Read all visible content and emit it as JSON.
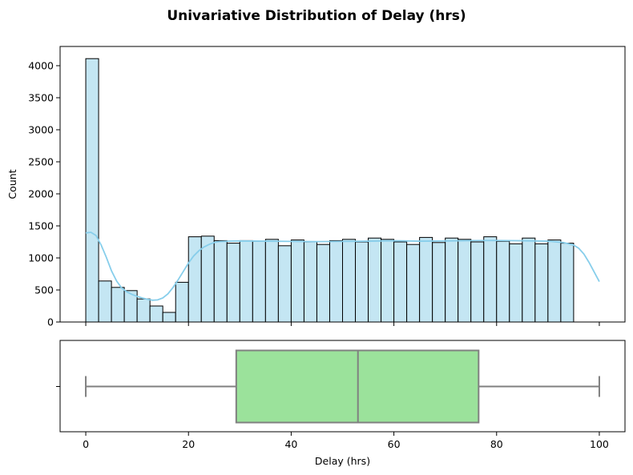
{
  "chart_data": [
    {
      "type": "histogram",
      "title": "Univariative Distribution of Delay (hrs)",
      "xlabel": "",
      "ylabel": "Count",
      "xlim": [
        -5,
        105
      ],
      "ylim": [
        0,
        4300
      ],
      "yticks": [
        0,
        500,
        1000,
        1500,
        2000,
        2500,
        3000,
        3500,
        4000
      ],
      "xticks": [
        0,
        20,
        40,
        60,
        80,
        100
      ],
      "bin_width": 2.5,
      "bin_start": 0,
      "bar_fill": "#c4e6f3",
      "bar_edge": "#000000",
      "kde_color": "#87ceeb",
      "values": [
        4110,
        640,
        540,
        490,
        360,
        250,
        150,
        620,
        1330,
        1340,
        1270,
        1230,
        1270,
        1260,
        1290,
        1190,
        1280,
        1250,
        1210,
        1270,
        1290,
        1250,
        1310,
        1290,
        1250,
        1210,
        1320,
        1240,
        1310,
        1290,
        1250,
        1330,
        1260,
        1220,
        1310,
        1220,
        1280,
        1230
      ],
      "kde": {
        "x": [
          0,
          1,
          2,
          3,
          4,
          5,
          6,
          7,
          8,
          9,
          10,
          11,
          12,
          13,
          14,
          15,
          16,
          17,
          18,
          19,
          20,
          21,
          22,
          23,
          24,
          25,
          26,
          28,
          30,
          35,
          40,
          45,
          50,
          55,
          60,
          65,
          70,
          75,
          80,
          85,
          90,
          93,
          95,
          96,
          97,
          98,
          99,
          100
        ],
        "y": [
          1390,
          1400,
          1350,
          1200,
          1010,
          800,
          640,
          530,
          470,
          430,
          400,
          375,
          355,
          340,
          345,
          375,
          440,
          540,
          660,
          790,
          920,
          1030,
          1110,
          1170,
          1210,
          1240,
          1255,
          1262,
          1265,
          1262,
          1258,
          1255,
          1258,
          1262,
          1268,
          1262,
          1265,
          1270,
          1272,
          1268,
          1262,
          1240,
          1200,
          1150,
          1060,
          930,
          780,
          630
        ]
      }
    },
    {
      "type": "box",
      "xlabel": "Delay (hrs)",
      "ylabel": "",
      "xlim": [
        -5,
        105
      ],
      "xticks": [
        0,
        20,
        40,
        60,
        80,
        100
      ],
      "min": 0,
      "q1": 29.3,
      "median": 53,
      "q3": 76.5,
      "max": 100,
      "box_fill": "#9be29b",
      "line_color": "#808080"
    }
  ]
}
